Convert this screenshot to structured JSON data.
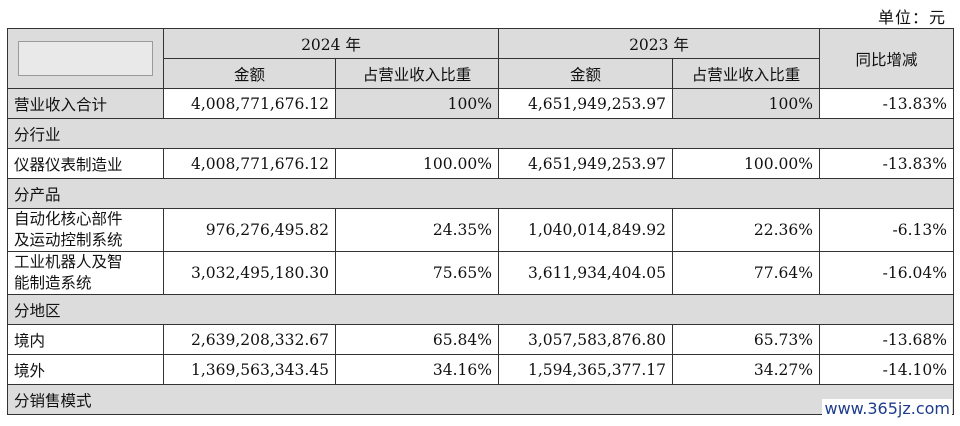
{
  "unit_label": "单位：元",
  "header": {
    "year_2024": "2024 年",
    "year_2023": "2023 年",
    "amount": "金额",
    "ratio": "占营业收入比重",
    "yoy": "同比增减"
  },
  "rows": {
    "total": {
      "label": "营业收入合计",
      "a24": "4,008,771,676.12",
      "r24": "100%",
      "a23": "4,651,949,253.97",
      "r23": "100%",
      "yoy": "-13.83%"
    },
    "sec_industry": "分行业",
    "instrument": {
      "label": "仪器仪表制造业",
      "a24": "4,008,771,676.12",
      "r24": "100.00%",
      "a23": "4,651,949,253.97",
      "r23": "100.00%",
      "yoy": "-13.83%"
    },
    "sec_product": "分产品",
    "automation": {
      "label_1": "自动化核心部件",
      "label_2": "及运动控制系统",
      "a24": "976,276,495.82",
      "r24": "24.35%",
      "a23": "1,040,014,849.92",
      "r23": "22.36%",
      "yoy": "-6.13%"
    },
    "robot": {
      "label_1": "工业机器人及智",
      "label_2": "能制造系统",
      "a24": "3,032,495,180.30",
      "r24": "75.65%",
      "a23": "3,611,934,404.05",
      "r23": "77.64%",
      "yoy": "-16.04%"
    },
    "sec_region": "分地区",
    "domestic": {
      "label": "境内",
      "a24": "2,639,208,332.67",
      "r24": "65.84%",
      "a23": "3,057,583,876.80",
      "r23": "65.73%",
      "yoy": "-13.68%"
    },
    "overseas": {
      "label": "境外",
      "a24": "1,369,563,343.45",
      "r24": "34.16%",
      "a23": "1,594,365,377.17",
      "r23": "34.27%",
      "yoy": "-14.10%"
    },
    "sec_sales": "分销售模式"
  },
  "watermark": "www.365jz.com"
}
